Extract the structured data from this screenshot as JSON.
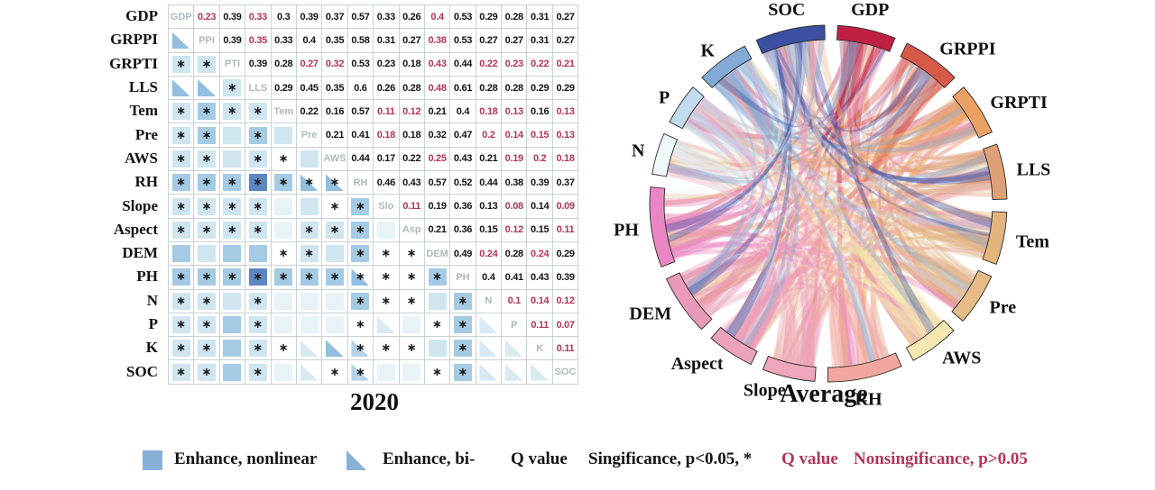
{
  "chart_data": [
    {
      "type": "heatmap",
      "title": "2020",
      "description": "Geodetector interaction matrix: upper triangle Q values (red = nonsignificant), diagonal factor abbreviations, lower triangle enhancement symbols (square = nonlinear enhance, triangle = bi-enhance, asterisk = significant p<0.05)",
      "row_labels": [
        "GDP",
        "GRPPI",
        "GRPTI",
        "LLS",
        "Tem",
        "Pre",
        "AWS",
        "RH",
        "Slope",
        "Aspect",
        "DEM",
        "PH",
        "N",
        "P",
        "K",
        "SOC"
      ],
      "cell_code_key": "numbers: Q value, suffix r = red/nonsignificant; #XXX = diagonal label; s0-s3 = square intensity; t0-t2 = triangle intensity; * = significance asterisk",
      "cells": [
        [
          "#GDP",
          "0.23r",
          "0.39",
          "0.33r",
          "0.3",
          "0.39",
          "0.37",
          "0.57",
          "0.33",
          "0.26",
          "0.4r",
          "0.53",
          "0.29",
          "0.28",
          "0.31",
          "0.27"
        ],
        [
          "t2",
          "#PPI",
          "0.39",
          "0.35r",
          "0.33",
          "0.4",
          "0.35",
          "0.58",
          "0.31",
          "0.27",
          "0.38r",
          "0.53",
          "0.27",
          "0.27",
          "0.31",
          "0.27"
        ],
        [
          "s1*",
          "s1*",
          "#PTI",
          "0.39",
          "0.28",
          "0.27r",
          "0.32r",
          "0.53",
          "0.23",
          "0.18",
          "0.43r",
          "0.44",
          "0.22r",
          "0.23r",
          "0.22r",
          "0.21r"
        ],
        [
          "t2",
          "t2",
          "s1*",
          "#LLS",
          "0.29",
          "0.45",
          "0.35",
          "0.6",
          "0.26",
          "0.28",
          "0.48r",
          "0.61",
          "0.28",
          "0.28",
          "0.29",
          "0.29"
        ],
        [
          "s1*",
          "s2*",
          "s1*",
          "s1*",
          "#Tem",
          "0.22",
          "0.16",
          "0.57",
          "0.11r",
          "0.12r",
          "0.21",
          "0.4",
          "0.18r",
          "0.13r",
          "0.16",
          "0.13r"
        ],
        [
          "s1*",
          "s2*",
          "s1",
          "s2*",
          "s1",
          "#Pre",
          "0.21",
          "0.41",
          "0.18r",
          "0.18",
          "0.32",
          "0.47",
          "0.2r",
          "0.14r",
          "0.15r",
          "0.13r"
        ],
        [
          "s1*",
          "s1*",
          "s1",
          "s1*",
          "*",
          "s1",
          "#AWS",
          "0.44",
          "0.17",
          "0.22",
          "0.25r",
          "0.43",
          "0.21",
          "0.19r",
          "0.2r",
          "0.18r"
        ],
        [
          "s2*",
          "s2*",
          "s2*",
          "s3*",
          "s2*",
          "t2*",
          "t2*",
          "#RH",
          "0.46",
          "0.43",
          "0.57",
          "0.52",
          "0.44",
          "0.38",
          "0.39",
          "0.37"
        ],
        [
          "s1*",
          "s1*",
          "s1*",
          "s1*",
          "s0",
          "s1",
          "*",
          "s2*",
          "#Slo",
          "0.11r",
          "0.19",
          "0.36",
          "0.13",
          "0.08r",
          "0.14",
          "0.09r"
        ],
        [
          "s1*",
          "s1*",
          "s1*",
          "s1*",
          "s0",
          "s1*",
          "s1*",
          "s2*",
          "s0",
          "#Asp",
          "0.21",
          "0.36",
          "0.15",
          "0.12r",
          "0.15",
          "0.11r"
        ],
        [
          "s2",
          "s1",
          "s2",
          "s2",
          "*",
          "s1*",
          "s1",
          "s2*",
          "*",
          "*",
          "#DEM",
          "0.49",
          "0.24r",
          "0.28",
          "0.24r",
          "0.29"
        ],
        [
          "s2*",
          "s2*",
          "s2*",
          "s3*",
          "s2*",
          "s2*",
          "s2*",
          "t2*",
          "*",
          "*",
          "s2*",
          "#PH",
          "0.4",
          "0.41",
          "0.43",
          "0.39"
        ],
        [
          "s1*",
          "s1*",
          "s1",
          "s1*",
          "s0",
          "s0",
          "s0",
          "s2*",
          "*",
          "*",
          "s1",
          "s2*",
          "#N",
          "0.1r",
          "0.14r",
          "0.12r"
        ],
        [
          "s1*",
          "s1*",
          "s2",
          "s1*",
          "s0",
          "s0",
          "s0",
          "*",
          "t0",
          "s0",
          "*",
          "s2*",
          "t0",
          "#P",
          "0.11r",
          "0.07r"
        ],
        [
          "s1*",
          "s1*",
          "s2",
          "s1*",
          "*",
          "t0",
          "t2",
          "t1*",
          "*",
          "*",
          "s1",
          "s2*",
          "t0",
          "t0",
          "#K",
          "0.11r"
        ],
        [
          "s1*",
          "s1*",
          "s2",
          "s1*",
          "s0",
          "t0",
          "*",
          "t1*",
          "s0",
          "s0",
          "*",
          "s2*",
          "t0",
          "t0",
          "t0",
          "#SOC"
        ]
      ]
    },
    {
      "type": "chord",
      "title": "Average",
      "nodes": [
        {
          "label": "GDP",
          "color": "#c12045",
          "weight": 1.05
        },
        {
          "label": "GRPPI",
          "color": "#d75947",
          "weight": 1.05
        },
        {
          "label": "GRPTI",
          "color": "#eca164",
          "weight": 0.95
        },
        {
          "label": "LLS",
          "color": "#dfa077",
          "weight": 1.0
        },
        {
          "label": "Tem",
          "color": "#e3b47e",
          "weight": 0.95
        },
        {
          "label": "Pre",
          "color": "#e7bb88",
          "weight": 0.95
        },
        {
          "label": "AWS",
          "color": "#f4e7b0",
          "weight": 0.9
        },
        {
          "label": "RH",
          "color": "#f1a69e",
          "weight": 1.35
        },
        {
          "label": "Slope",
          "color": "#efa5ba",
          "weight": 0.95
        },
        {
          "label": "Aspect",
          "color": "#eda3bc",
          "weight": 0.85
        },
        {
          "label": "DEM",
          "color": "#e99ab9",
          "weight": 1.1
        },
        {
          "label": "PH",
          "color": "#ea86c3",
          "weight": 1.45
        },
        {
          "label": "N",
          "color": "#eff8f8",
          "weight": 0.75
        },
        {
          "label": "P",
          "color": "#c2dbee",
          "weight": 0.75
        },
        {
          "label": "K",
          "color": "#83aad5",
          "weight": 0.95
        },
        {
          "label": "SOC",
          "color": "#3c50a2",
          "weight": 1.25
        }
      ]
    }
  ],
  "legend": {
    "enhance_nonlinear": "Enhance, nonlinear",
    "enhance_bi": "Enhance, bi-",
    "q_value_sig": "Q value",
    "significance": "Singificance, p<0.05, *",
    "q_value_nonsig": "Q value",
    "nonsignificance": "Nonsingificance, p>0.05"
  },
  "colors": {
    "num_black": "#141414",
    "num_red": "#b23558",
    "diag_gray": "#adb8bf",
    "sq0": "#e8f3f7",
    "sq1": "#cfe5f0",
    "sq2": "#a5cbe4",
    "sq3": "#5d87c2",
    "tri0": "#d9eaf3",
    "tri1": "#b5d3e9",
    "tri2": "#93bede",
    "legend_swatch": "#89b1d8",
    "legend_red": "#b23558"
  }
}
